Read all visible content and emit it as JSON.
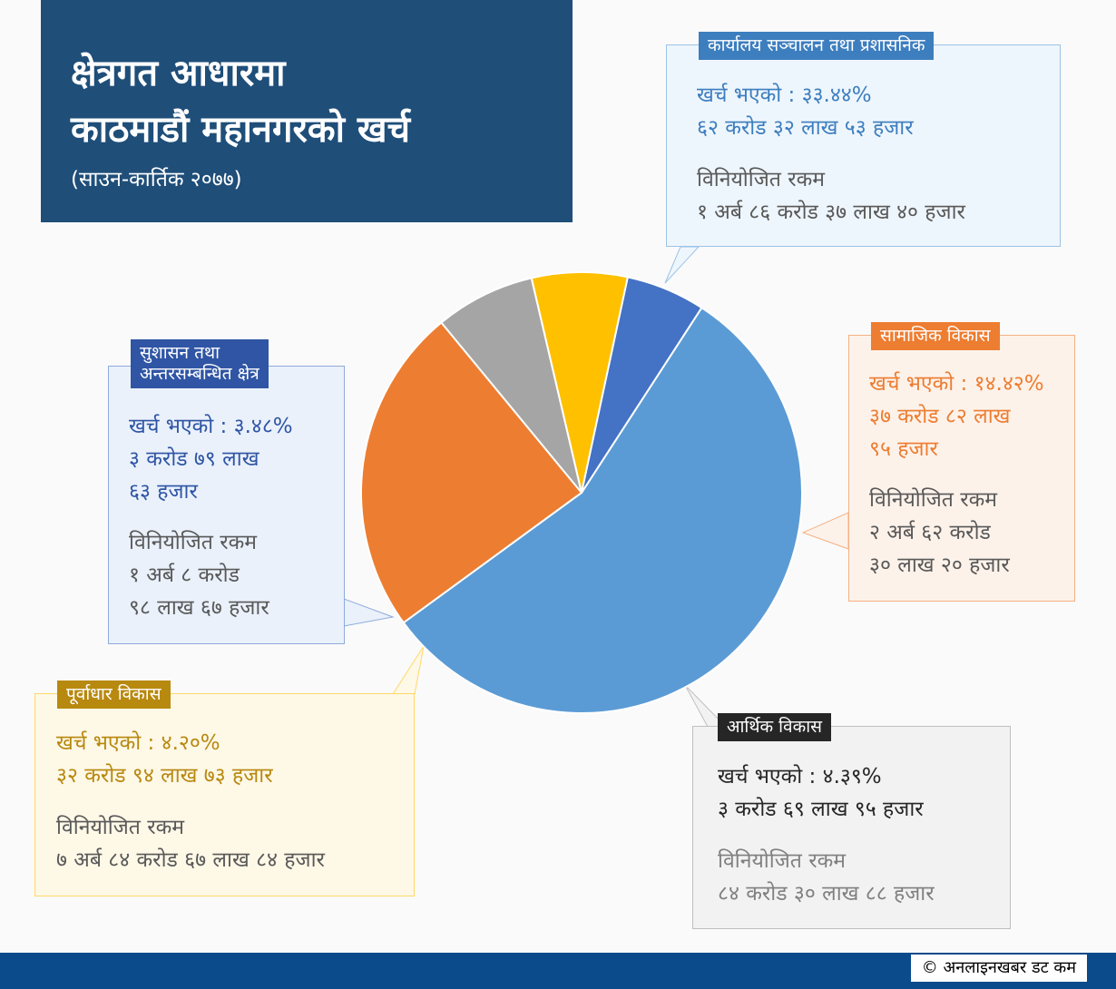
{
  "header": {
    "title_line1": "क्षेत्रगत आधारमा",
    "title_line2": "काठमाडौं महानगरको खर्च",
    "subtitle": "(साउन-कार्तिक २०७७)"
  },
  "chart_data": {
    "type": "pie",
    "series": [
      {
        "name": "कार्यालय सञ्चालन तथा प्रशासनिक",
        "color": "#5b9bd5",
        "value": 33.44,
        "spent_label": "खर्च भएको : ३३.४४%",
        "spent_amount": "६२ करोड ३२ लाख ५३ हजार",
        "allocated_label": "विनियोजित रकम",
        "allocated_amount": "१ अर्ब ८६ करोड ३७ लाख ४० हजार"
      },
      {
        "name": "सामाजिक विकास",
        "color": "#ed7d31",
        "value": 14.42,
        "spent_label": "खर्च भएको : १४.४२%",
        "spent_amount_1": "३७ करोड ८२ लाख",
        "spent_amount_2": "९५ हजार",
        "allocated_label": "विनियोजित रकम",
        "allocated_amount_1": "२ अर्ब ६२ करोड",
        "allocated_amount_2": "३० लाख २० हजार"
      },
      {
        "name": "आर्थिक विकास",
        "color": "#a5a5a5",
        "value": 4.39,
        "spent_label": "खर्च भएको : ४.३९%",
        "spent_amount": "३ करोड ६९ लाख ९५ हजार",
        "allocated_label": "विनियोजित रकम",
        "allocated_amount": "८४ करोड ३० लाख ८८ हजार"
      },
      {
        "name": "पूर्वाधार विकास",
        "color": "#ffc000",
        "value": 4.2,
        "spent_label": "खर्च भएको : ४.२०%",
        "spent_amount": "३२ करोड ९४ लाख ७३ हजार",
        "allocated_label": "विनियोजित रकम",
        "allocated_amount": "७ अर्ब ८४ करोड ६७ लाख ८४ हजार"
      },
      {
        "name_line1": "सुशासन तथा",
        "name_line2": "अन्तरसम्बन्धित क्षेत्र",
        "color": "#4472c4",
        "value": 3.48,
        "spent_label": "खर्च भएको : ३.४८%",
        "spent_amount_1": "३ करोड ७९ लाख",
        "spent_amount_2": "६३ हजार",
        "allocated_label": "विनियोजित रकम",
        "allocated_amount_1": "१ अर्ब ८ करोड",
        "allocated_amount_2": "९८ लाख ६७ हजार"
      }
    ]
  },
  "footer": {
    "credit": "© अनलाइनखबर डट कम"
  }
}
